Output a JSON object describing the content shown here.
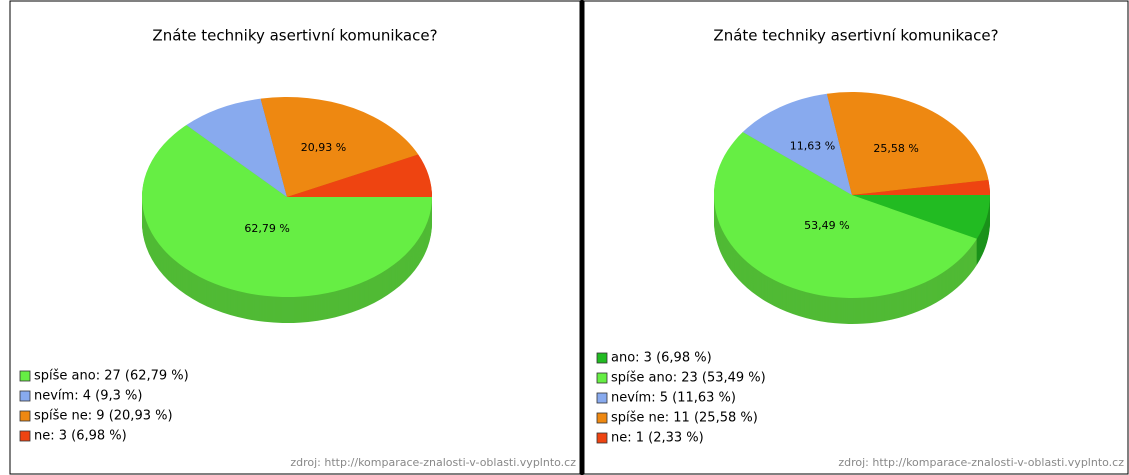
{
  "chart_data": [
    {
      "type": "pie",
      "title": "Znáte techniky asertivní komunikace?",
      "categories": [
        "spíše ano",
        "nevím",
        "spíše ne",
        "ne"
      ],
      "values": [
        62.79,
        9.3,
        20.93,
        6.98
      ],
      "colors": [
        "#66ee44",
        "#88aaee",
        "#ee8811",
        "#ee4411"
      ],
      "value_labels": [
        "62,79 %",
        null,
        "20,93 %",
        null
      ],
      "legend_labels": [
        "spíše ano: 27 (62,79 %)",
        "nevím: 4 (9,3 %)",
        "spíše ne: 9 (20,93 %)",
        "ne: 3 (6,98 %)"
      ],
      "source": "zdroj: http://komparace-znalosti-v-oblasti.vyplnto.cz"
    },
    {
      "type": "pie",
      "title": "Znáte techniky asertivní komunikace?",
      "categories": [
        "ano",
        "spíše ano",
        "nevím",
        "spíše ne",
        "ne"
      ],
      "values": [
        6.98,
        53.49,
        11.63,
        25.58,
        2.33
      ],
      "colors": [
        "#22bb22",
        "#66ee44",
        "#88aaee",
        "#ee8811",
        "#ee4411"
      ],
      "value_labels": [
        null,
        "53,49 %",
        "11,63 %",
        "25,58 %",
        null
      ],
      "legend_labels": [
        "ano: 3 (6,98 %)",
        "spíše ano: 23 (53,49 %)",
        "nevím: 5 (11,63 %)",
        "spíše ne: 11 (25,58 %)",
        "ne: 1 (2,33 %)"
      ],
      "source": "zdroj: http://komparace-znalosti-v-oblasti.vyplnto.cz"
    }
  ]
}
